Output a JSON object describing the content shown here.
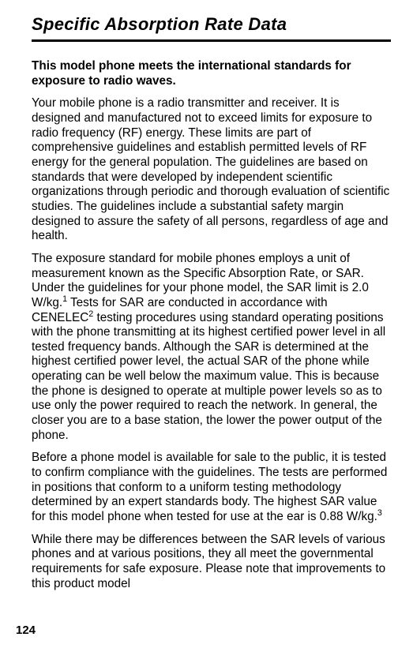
{
  "title": "Specific Absorption Rate Data",
  "lead": "This model phone meets the international standards for exposure to radio waves.",
  "p1": "Your mobile phone is a radio transmitter and receiver. It is designed and manufactured not to exceed limits for exposure to radio frequency (RF) energy. These limits are part of comprehensive guidelines and establish permitted levels of RF energy for the general population. The guidelines are based on standards that were developed by independent scientific organizations through periodic and thorough evaluation of scientific studies. The guidelines include a substantial safety margin designed to assure the safety of all persons, regardless of age and health.",
  "p2a": "The exposure standard for mobile phones employs a unit of measurement known as the Specific Absorption Rate, or SAR. Under the guidelines for your phone model, the SAR limit is 2.0 W/kg.",
  "p2b": " Tests for SAR are conducted in accordance with CENELEC",
  "p2c": " testing procedures using standard operating positions with the phone transmitting at its highest certified power level in all tested frequency bands. Although the SAR is determined at the highest certified power level, the actual SAR of the phone while operating can be well below the maximum value. This is because the phone is designed to operate at multiple power levels so as to use only the power required to reach the network. In general, the closer you are to a base station, the lower the power output of the phone.",
  "p3a": "Before a phone model is available for sale to the public, it is tested to confirm compliance with the guidelines. The tests are performed in positions that conform to a uniform testing methodology determined by an expert standards body. The highest SAR value for this model phone when tested for use at the ear is 0.88 W/kg.",
  "p4": "While there may be differences between the SAR levels of various phones and at various positions, they all meet the governmental requirements for safe exposure. Please note that improvements to this product model",
  "fn1": "1",
  "fn2": "2",
  "fn3": "3",
  "pagenum": "124"
}
